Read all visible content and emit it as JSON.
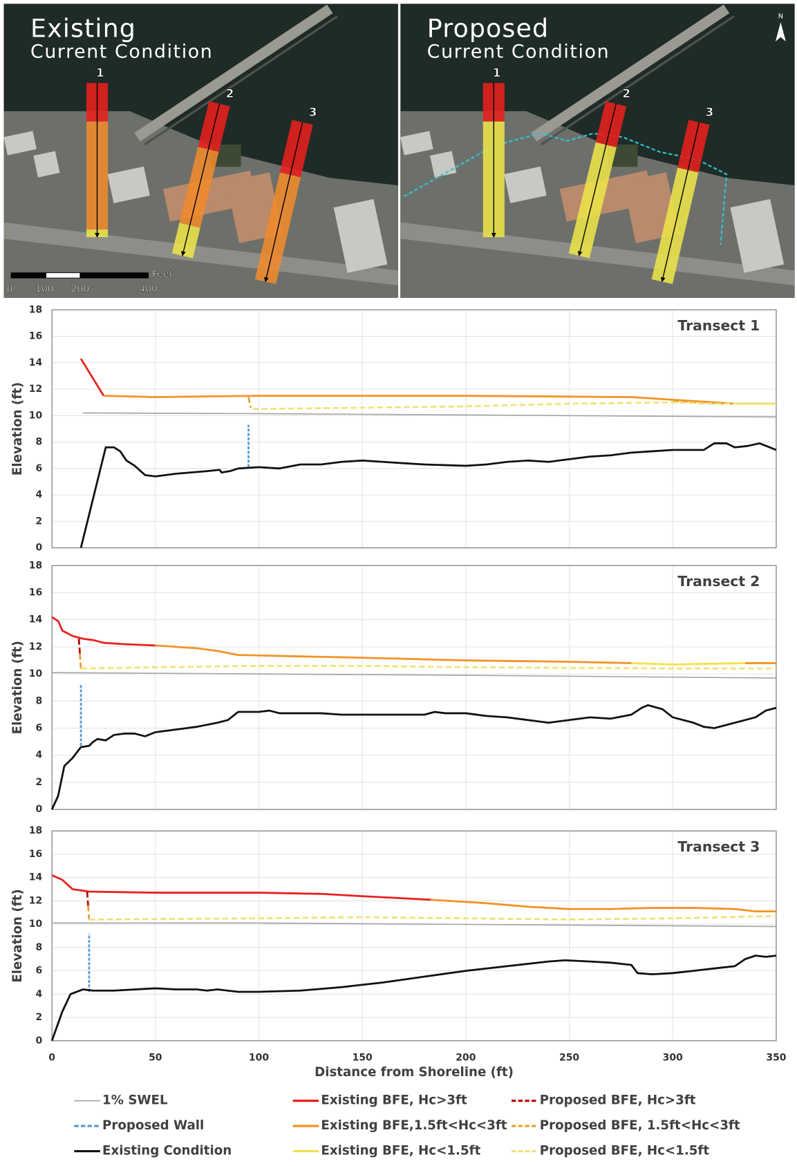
{
  "maps": [
    {
      "title": "Existing",
      "subtitle": "Current Condition",
      "transects": [
        "1",
        "2",
        "3"
      ]
    },
    {
      "title": "Proposed",
      "subtitle": "Current Condition",
      "transects": [
        "1",
        "2",
        "3"
      ]
    }
  ],
  "scale_bar": {
    "unit": "Feet",
    "labels": [
      "0",
      "100",
      "200",
      "400"
    ]
  },
  "north_arrow": "N",
  "chart_data": [
    {
      "type": "line",
      "title": "Transect 1",
      "ylabel": "Elevation (ft)",
      "xlim": [
        0,
        350
      ],
      "xticks": [
        0,
        50,
        100,
        150,
        200,
        250,
        300,
        350
      ],
      "ylim": [
        0,
        18
      ],
      "yticks": [
        0,
        2,
        4,
        6,
        8,
        10,
        12,
        14,
        16,
        18
      ],
      "grid": true,
      "series": [
        {
          "color": "#a6a6a6",
          "dash": false,
          "x": [
            15,
            100,
            200,
            350
          ],
          "values": [
            10.2,
            10.15,
            10.05,
            9.9
          ]
        },
        {
          "color": "#5b9bd5",
          "dash": true,
          "x": [
            95,
            95
          ],
          "values": [
            6.1,
            9.3
          ]
        },
        {
          "color": "#111111",
          "dash": false,
          "x": [
            14,
            26,
            30,
            33,
            36,
            40,
            45,
            50,
            60,
            75,
            81,
            82,
            86,
            90,
            100,
            110,
            120,
            130,
            140,
            150,
            160,
            170,
            180,
            200,
            210,
            220,
            230,
            240,
            250,
            260,
            270,
            280,
            290,
            300,
            315,
            320,
            326,
            330,
            336,
            342,
            350
          ],
          "values": [
            0,
            7.6,
            7.6,
            7.3,
            6.6,
            6.2,
            5.5,
            5.4,
            5.6,
            5.8,
            5.9,
            5.7,
            5.8,
            6.0,
            6.1,
            6.0,
            6.3,
            6.3,
            6.5,
            6.6,
            6.5,
            6.4,
            6.3,
            6.2,
            6.3,
            6.5,
            6.6,
            6.5,
            6.7,
            6.9,
            7.0,
            7.2,
            7.3,
            7.4,
            7.4,
            7.9,
            7.9,
            7.6,
            7.7,
            7.9,
            7.4
          ]
        },
        {
          "color": "#e8201e",
          "dash": false,
          "x": [
            14,
            25
          ],
          "values": [
            14.3,
            11.5
          ]
        },
        {
          "color": "#f39325",
          "dash": false,
          "x": [
            25,
            50,
            100,
            200,
            280,
            300,
            320,
            330,
            350
          ],
          "values": [
            11.5,
            11.4,
            11.5,
            11.5,
            11.4,
            11.2,
            11.0,
            10.9,
            10.9
          ]
        },
        {
          "color": "#f3e04a",
          "dash": false,
          "x": [
            330,
            350
          ],
          "values": [
            10.9,
            10.9
          ]
        },
        {
          "color": "#c00000",
          "dash": true,
          "x": [],
          "values": []
        },
        {
          "color": "#e8a030",
          "dash": true,
          "x": [
            95,
            96,
            200,
            300,
            325
          ],
          "values": [
            11.4,
            10.6,
            null,
            11.1,
            10.9
          ]
        },
        {
          "color": "#efe27a",
          "dash": true,
          "x": [
            97,
            150,
            200,
            250,
            300,
            320,
            350
          ],
          "values": [
            10.5,
            10.6,
            10.7,
            10.9,
            11.0,
            10.9,
            10.9
          ]
        }
      ]
    },
    {
      "type": "line",
      "title": "Transect 2",
      "ylabel": "Elevation (ft)",
      "xlim": [
        0,
        350
      ],
      "xticks": [
        0,
        50,
        100,
        150,
        200,
        250,
        300,
        350
      ],
      "ylim": [
        0,
        18
      ],
      "yticks": [
        0,
        2,
        4,
        6,
        8,
        10,
        12,
        14,
        16,
        18
      ],
      "grid": true,
      "series": [
        {
          "color": "#a6a6a6",
          "dash": false,
          "x": [
            0,
            100,
            200,
            350
          ],
          "values": [
            10.1,
            10.0,
            9.9,
            9.7
          ]
        },
        {
          "color": "#5b9bd5",
          "dash": true,
          "x": [
            14,
            14
          ],
          "values": [
            4.7,
            9.3
          ]
        },
        {
          "color": "#111111",
          "dash": false,
          "x": [
            0,
            3,
            6,
            10,
            14,
            18,
            20,
            22,
            26,
            30,
            35,
            40,
            45,
            50,
            60,
            70,
            80,
            85,
            90,
            100,
            105,
            110,
            130,
            140,
            160,
            180,
            185,
            190,
            200,
            210,
            220,
            230,
            240,
            250,
            260,
            270,
            280,
            285,
            288,
            295,
            300,
            310,
            315,
            320,
            325,
            340,
            345,
            350
          ],
          "values": [
            0,
            1,
            3.2,
            3.8,
            4.6,
            4.7,
            5.0,
            5.2,
            5.1,
            5.5,
            5.6,
            5.6,
            5.4,
            5.7,
            5.9,
            6.1,
            6.4,
            6.6,
            7.2,
            7.2,
            7.3,
            7.1,
            7.1,
            7.0,
            7.0,
            7.0,
            7.2,
            7.1,
            7.1,
            6.9,
            6.8,
            6.6,
            6.4,
            6.6,
            6.8,
            6.7,
            7.0,
            7.5,
            7.7,
            7.4,
            6.8,
            6.4,
            6.1,
            6.0,
            6.2,
            6.8,
            7.3,
            7.5
          ]
        },
        {
          "color": "#e8201e",
          "dash": false,
          "x": [
            0,
            3,
            5,
            10,
            15,
            20,
            25,
            35,
            50
          ],
          "values": [
            14.2,
            13.9,
            13.2,
            12.8,
            12.6,
            12.5,
            12.3,
            12.2,
            12.1
          ]
        },
        {
          "color": "#f39325",
          "dash": false,
          "x": [
            50,
            70,
            80,
            90,
            120,
            150,
            200,
            250,
            280,
            300,
            335,
            350
          ],
          "values": [
            12.1,
            11.9,
            11.7,
            11.4,
            11.3,
            11.2,
            11.0,
            10.9,
            10.8,
            null,
            10.8,
            10.8
          ]
        },
        {
          "color": "#f3e04a",
          "dash": false,
          "x": [
            280,
            300,
            335
          ],
          "values": [
            10.8,
            10.7,
            10.8
          ]
        },
        {
          "color": "#c00000",
          "dash": true,
          "x": [
            13,
            13.5
          ],
          "values": [
            12.6,
            11.5
          ]
        },
        {
          "color": "#e8a030",
          "dash": true,
          "x": [
            13.5,
            14
          ],
          "values": [
            11.5,
            10.4
          ]
        },
        {
          "color": "#efe27a",
          "dash": true,
          "x": [
            14,
            50,
            100,
            150,
            200,
            300,
            350
          ],
          "values": [
            10.4,
            10.5,
            10.6,
            10.6,
            10.5,
            10.4,
            10.4
          ]
        }
      ]
    },
    {
      "type": "line",
      "title": "Transect 3",
      "ylabel": "Elevation (ft)",
      "xlabel": "Distance from Shoreline (ft)",
      "xlim": [
        0,
        350
      ],
      "xticks": [
        0,
        50,
        100,
        150,
        200,
        250,
        300,
        350
      ],
      "ylim": [
        0,
        18
      ],
      "yticks": [
        0,
        2,
        4,
        6,
        8,
        10,
        12,
        14,
        16,
        18
      ],
      "grid": true,
      "series": [
        {
          "name": "1% SWEL",
          "color": "#a6a6a6",
          "dash": false,
          "x": [
            0,
            100,
            350
          ],
          "values": [
            10.1,
            10.1,
            9.8
          ]
        },
        {
          "name": "Proposed Wall",
          "color": "#5b9bd5",
          "dash": true,
          "x": [
            18,
            18
          ],
          "values": [
            4.2,
            9.2
          ]
        },
        {
          "name": "Existing Condition",
          "color": "#111111",
          "dash": false,
          "x": [
            0,
            5,
            9,
            15,
            20,
            30,
            50,
            60,
            70,
            75,
            80,
            90,
            100,
            120,
            140,
            160,
            180,
            200,
            220,
            240,
            248,
            260,
            270,
            280,
            283,
            290,
            300,
            310,
            315,
            320,
            330,
            335,
            340,
            345,
            350
          ],
          "values": [
            0,
            2.5,
            4.0,
            4.4,
            4.3,
            4.3,
            4.5,
            4.4,
            4.4,
            4.3,
            4.4,
            4.2,
            4.2,
            4.3,
            4.6,
            5.0,
            5.5,
            6.0,
            6.4,
            6.8,
            6.9,
            6.8,
            6.7,
            6.5,
            5.8,
            5.7,
            5.8,
            6.0,
            6.1,
            6.2,
            6.4,
            7.0,
            7.3,
            7.2,
            7.3
          ]
        },
        {
          "name": "Existing BFE, Hc>3ft",
          "color": "#e8201e",
          "dash": false,
          "x": [
            0,
            5,
            10,
            18,
            50,
            100,
            130,
            150,
            183
          ],
          "values": [
            14.2,
            13.8,
            13.0,
            12.8,
            12.7,
            12.7,
            12.6,
            12.4,
            12.1
          ]
        },
        {
          "name": "Existing BFE,1.5ft<Hc<3ft",
          "color": "#f39325",
          "dash": false,
          "x": [
            183,
            210,
            230,
            250,
            270,
            290,
            310,
            330,
            340,
            350
          ],
          "values": [
            12.1,
            11.8,
            11.5,
            11.3,
            11.3,
            11.4,
            11.4,
            11.3,
            11.1,
            11.1
          ]
        },
        {
          "name": "Existing BFE, Hc<1.5ft",
          "color": "#f3e04a",
          "dash": false,
          "x": [],
          "values": []
        },
        {
          "name": "Proposed BFE, Hc>3ft",
          "color": "#c00000",
          "dash": true,
          "x": [
            17,
            17.5
          ],
          "values": [
            12.8,
            11.6
          ]
        },
        {
          "name": "Proposed BFE, 1.5ft<Hc<3ft",
          "color": "#e8a030",
          "dash": true,
          "x": [
            17.5,
            18
          ],
          "values": [
            11.6,
            10.4
          ]
        },
        {
          "name": "Proposed BFE, Hc<1.5ft",
          "color": "#efe27a",
          "dash": true,
          "x": [
            18,
            100,
            150,
            200,
            250,
            300,
            350
          ],
          "values": [
            10.4,
            10.5,
            10.6,
            10.5,
            10.4,
            10.5,
            10.7
          ]
        }
      ]
    }
  ]
}
